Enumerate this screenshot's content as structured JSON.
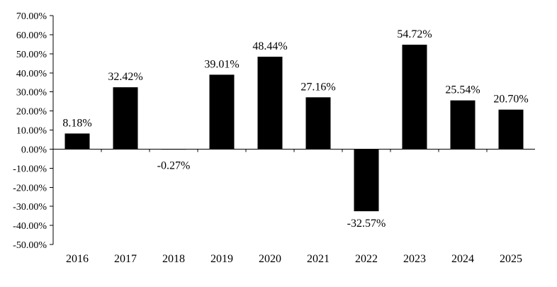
{
  "chart_data": {
    "type": "bar",
    "categories": [
      "2016",
      "2017",
      "2018",
      "2019",
      "2020",
      "2021",
      "2022",
      "2023",
      "2024",
      "2025"
    ],
    "values": [
      8.18,
      32.42,
      -0.27,
      39.01,
      48.44,
      27.16,
      -32.57,
      54.72,
      25.54,
      20.7
    ],
    "data_labels": [
      "8.18%",
      "32.42%",
      "-0.27%",
      "39.01%",
      "48.44%",
      "27.16%",
      "-32.57%",
      "54.72%",
      "25.54%",
      "20.70%"
    ],
    "ylim": [
      -50,
      70
    ],
    "yticks": [
      70,
      60,
      50,
      40,
      30,
      20,
      10,
      0,
      -10,
      -20,
      -30,
      -40,
      -50
    ],
    "ytick_labels": [
      "70.00%",
      "60.00%",
      "50.00%",
      "40.00%",
      "30.00%",
      "20.00%",
      "10.00%",
      "0.00%",
      "-10.00%",
      "-20.00%",
      "-30.00%",
      "-40.00%",
      "-50.00%"
    ],
    "title": "",
    "xlabel": "",
    "ylabel": "",
    "grid": false,
    "legend": "none",
    "bar_color": "#000000"
  }
}
